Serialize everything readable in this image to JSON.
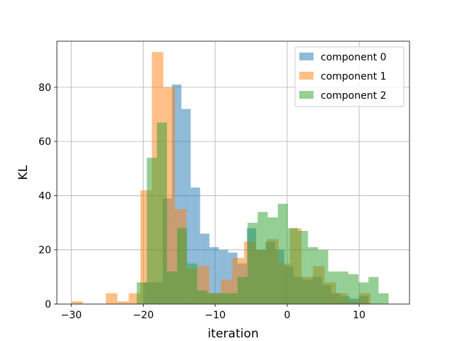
{
  "chart_data": {
    "type": "histogram",
    "title": "",
    "xlabel": "iteration",
    "ylabel": "KL",
    "xlim": [
      -32,
      17
    ],
    "ylim": [
      0,
      97
    ],
    "x_ticks": [
      -30,
      -20,
      -10,
      0,
      10
    ],
    "x_tick_labels": [
      "−30",
      "−20",
      "−10",
      "0",
      "10"
    ],
    "y_ticks": [
      0,
      20,
      40,
      60,
      80
    ],
    "y_tick_labels": [
      "0",
      "20",
      "40",
      "60",
      "80"
    ],
    "grid": true,
    "legend_position": "top-right",
    "series": [
      {
        "name": "component 0",
        "color": "#1f77b4",
        "alpha": 0.5,
        "bins": [
          [
            -19.9,
            -18.6,
            8
          ],
          [
            -18.6,
            -17.3,
            8
          ],
          [
            -17.3,
            -16.0,
            39
          ],
          [
            -16.0,
            -14.7,
            81
          ],
          [
            -14.7,
            -13.4,
            72
          ],
          [
            -13.4,
            -12.1,
            43
          ],
          [
            -12.1,
            -10.8,
            26
          ],
          [
            -10.8,
            -9.5,
            21
          ],
          [
            -9.5,
            -8.2,
            20
          ],
          [
            -8.2,
            -6.9,
            19
          ],
          [
            -6.9,
            -5.6,
            15
          ],
          [
            -5.6,
            -4.3,
            28
          ],
          [
            -4.3,
            -3.0,
            20
          ],
          [
            -3.0,
            -1.7,
            23
          ],
          [
            -1.7,
            -0.4,
            20
          ],
          [
            -0.4,
            0.9,
            14
          ],
          [
            0.9,
            2.2,
            10
          ],
          [
            2.2,
            3.5,
            9
          ],
          [
            3.5,
            4.8,
            10
          ],
          [
            4.8,
            6.1,
            7
          ],
          [
            6.1,
            7.4,
            4
          ],
          [
            7.4,
            8.7,
            3
          ],
          [
            8.7,
            10.0,
            2
          ],
          [
            10.0,
            11.3,
            3
          ]
        ]
      },
      {
        "name": "component 1",
        "color": "#ff7f0e",
        "alpha": 0.5,
        "bins": [
          [
            -30.0,
            -28.4,
            1
          ],
          [
            -28.4,
            -26.8,
            0
          ],
          [
            -26.8,
            -25.2,
            0
          ],
          [
            -25.2,
            -23.6,
            4
          ],
          [
            -23.6,
            -22.0,
            1
          ],
          [
            -22.0,
            -20.4,
            4
          ],
          [
            -20.4,
            -18.8,
            42
          ],
          [
            -18.8,
            -17.2,
            93
          ],
          [
            -17.2,
            -15.6,
            80
          ],
          [
            -15.6,
            -14.0,
            35
          ],
          [
            -14.0,
            -12.4,
            13
          ],
          [
            -12.4,
            -10.8,
            14
          ],
          [
            -10.8,
            -9.2,
            4
          ],
          [
            -9.2,
            -7.6,
            9
          ],
          [
            -7.6,
            -6.0,
            17
          ],
          [
            -6.0,
            -4.4,
            23
          ],
          [
            -4.4,
            -2.8,
            20
          ],
          [
            -2.8,
            -1.2,
            24
          ],
          [
            -1.2,
            0.4,
            15
          ],
          [
            0.4,
            2.0,
            28
          ],
          [
            2.0,
            3.6,
            10
          ],
          [
            3.6,
            5.2,
            14
          ],
          [
            5.2,
            6.8,
            8
          ],
          [
            6.8,
            8.4,
            4
          ],
          [
            8.4,
            10.0,
            1
          ],
          [
            10.0,
            11.6,
            4
          ]
        ]
      },
      {
        "name": "component 2",
        "color": "#2ca02c",
        "alpha": 0.5,
        "bins": [
          [
            -20.9,
            -19.5,
            8
          ],
          [
            -19.5,
            -18.1,
            54
          ],
          [
            -18.1,
            -16.7,
            67
          ],
          [
            -16.7,
            -15.3,
            12
          ],
          [
            -15.3,
            -13.9,
            28
          ],
          [
            -13.9,
            -12.5,
            15
          ],
          [
            -12.5,
            -11.1,
            5
          ],
          [
            -11.1,
            -9.7,
            4
          ],
          [
            -9.7,
            -8.3,
            4
          ],
          [
            -8.3,
            -6.9,
            4
          ],
          [
            -6.9,
            -5.5,
            10
          ],
          [
            -5.5,
            -4.1,
            30
          ],
          [
            -4.1,
            -2.7,
            34
          ],
          [
            -2.7,
            -1.3,
            32
          ],
          [
            -1.3,
            0.1,
            37
          ],
          [
            0.1,
            1.5,
            28
          ],
          [
            1.5,
            2.9,
            27
          ],
          [
            2.9,
            4.3,
            21
          ],
          [
            4.3,
            5.7,
            20
          ],
          [
            5.7,
            7.1,
            12
          ],
          [
            7.1,
            8.5,
            12
          ],
          [
            8.5,
            9.9,
            11
          ],
          [
            9.9,
            11.3,
            8
          ],
          [
            11.3,
            12.7,
            10
          ],
          [
            12.7,
            14.1,
            4
          ]
        ]
      }
    ]
  }
}
